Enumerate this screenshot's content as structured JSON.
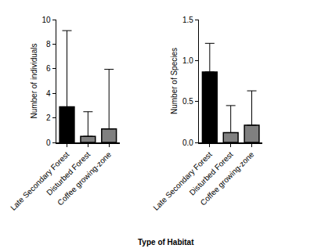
{
  "x_title": "Type of Habitat",
  "chart_data": [
    {
      "type": "bar",
      "ylabel": "Number of individuals",
      "categories": [
        "Late Secondary Forest",
        "Disturbed Forest",
        "Coffee growing-zone"
      ],
      "values": [
        2.9,
        0.5,
        1.1
      ],
      "errors": [
        6.2,
        2.0,
        4.85
      ],
      "colors": [
        "#000000",
        "#808080",
        "#808080"
      ],
      "ylim": [
        0,
        10
      ],
      "yticks": [
        0,
        2,
        4,
        6,
        8,
        10
      ],
      "grid": false
    },
    {
      "type": "bar",
      "ylabel": "Number of Species",
      "categories": [
        "Late Secondary Forest",
        "Disturbed Forest",
        "Coffee growing-zone"
      ],
      "values": [
        0.86,
        0.12,
        0.21
      ],
      "errors": [
        0.35,
        0.33,
        0.42
      ],
      "colors": [
        "#000000",
        "#808080",
        "#808080"
      ],
      "ylim": [
        0,
        1.5
      ],
      "yticks": [
        {
          "value": 0,
          "label": "0.0"
        },
        0.5,
        {
          "value": 1,
          "label": "1.0"
        },
        1.5
      ],
      "grid": false
    }
  ]
}
